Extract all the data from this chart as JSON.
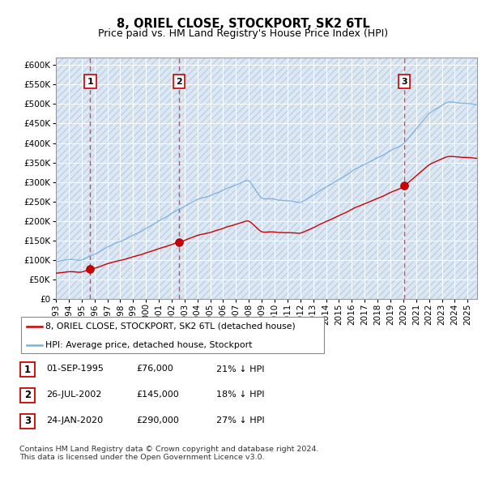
{
  "title": "8, ORIEL CLOSE, STOCKPORT, SK2 6TL",
  "subtitle": "Price paid vs. HM Land Registry's House Price Index (HPI)",
  "ylim": [
    0,
    620000
  ],
  "yticks": [
    0,
    50000,
    100000,
    150000,
    200000,
    250000,
    300000,
    350000,
    400000,
    450000,
    500000,
    550000,
    600000
  ],
  "xlim_start": 1993.0,
  "xlim_end": 2025.75,
  "sales": [
    {
      "date_year": 1995.67,
      "price": 76000,
      "label": "1"
    },
    {
      "date_year": 2002.57,
      "price": 145000,
      "label": "2"
    },
    {
      "date_year": 2020.07,
      "price": 290000,
      "label": "3"
    }
  ],
  "sale_color": "#cc0000",
  "hpi_color": "#7ab0e0",
  "vline_color": "#dd4444",
  "legend_entries": [
    "8, ORIEL CLOSE, STOCKPORT, SK2 6TL (detached house)",
    "HPI: Average price, detached house, Stockport"
  ],
  "table_rows": [
    {
      "num": "1",
      "date": "01-SEP-1995",
      "price": "£76,000",
      "hpi": "21% ↓ HPI"
    },
    {
      "num": "2",
      "date": "26-JUL-2002",
      "price": "£145,000",
      "hpi": "18% ↓ HPI"
    },
    {
      "num": "3",
      "date": "24-JAN-2020",
      "price": "£290,000",
      "hpi": "27% ↓ HPI"
    }
  ],
  "footer": "Contains HM Land Registry data © Crown copyright and database right 2024.\nThis data is licensed under the Open Government Licence v3.0.",
  "title_fontsize": 10.5,
  "subtitle_fontsize": 9,
  "tick_fontsize": 7.5
}
